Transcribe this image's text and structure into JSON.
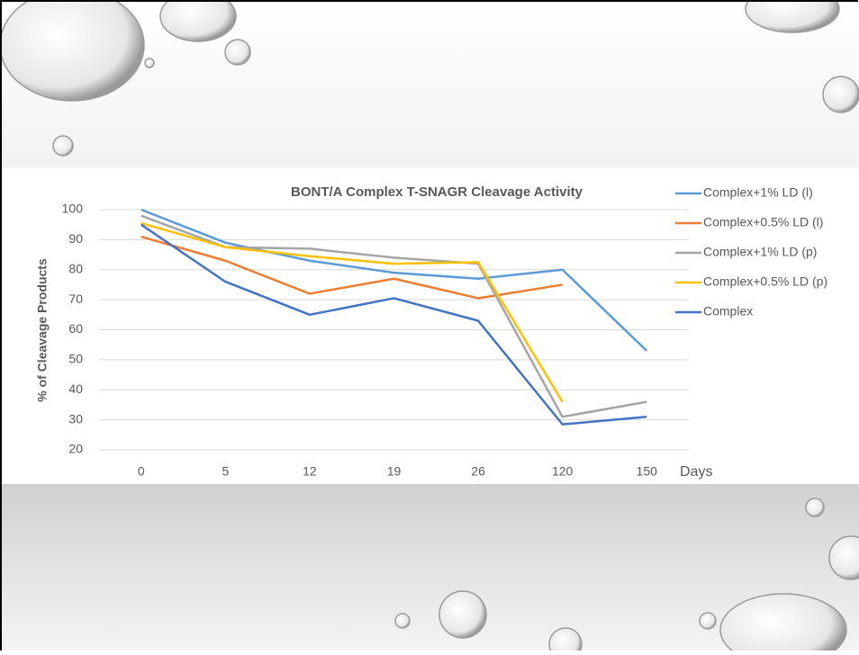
{
  "chart_data": {
    "type": "line",
    "title": "BONT/A Complex T-SNAGR Cleavage Activity",
    "y_label": "% of Cleavage Products",
    "x_label": "Days",
    "categories": [
      "0",
      "5",
      "12",
      "19",
      "26",
      "120",
      "150"
    ],
    "series": [
      {
        "name": "Complex+1% LD (l)",
        "color": "#5b9bd5",
        "values": [
          100,
          89,
          83,
          79,
          77,
          80,
          53
        ]
      },
      {
        "name": "Complex+0.5% LD (l)",
        "color": "#ed7d31",
        "values": [
          91,
          83,
          72,
          77,
          70.5,
          75,
          null
        ]
      },
      {
        "name": "Complex+1% LD (p)",
        "color": "#a5a5a5",
        "values": [
          98,
          87.5,
          87,
          84,
          82,
          31,
          36
        ]
      },
      {
        "name": "Complex+0.5% LD (p)",
        "color": "#ffc000",
        "values": [
          95.5,
          87.5,
          84.5,
          82,
          82.5,
          36,
          null
        ]
      },
      {
        "name": "Complex",
        "color": "#4472c4",
        "values": [
          95,
          76,
          65,
          70.5,
          63,
          28.5,
          31
        ]
      }
    ],
    "ylim": [
      20,
      100
    ],
    "yticks": [
      20,
      30,
      40,
      50,
      60,
      70,
      80,
      90,
      100
    ],
    "grid": true,
    "legend": "right"
  }
}
